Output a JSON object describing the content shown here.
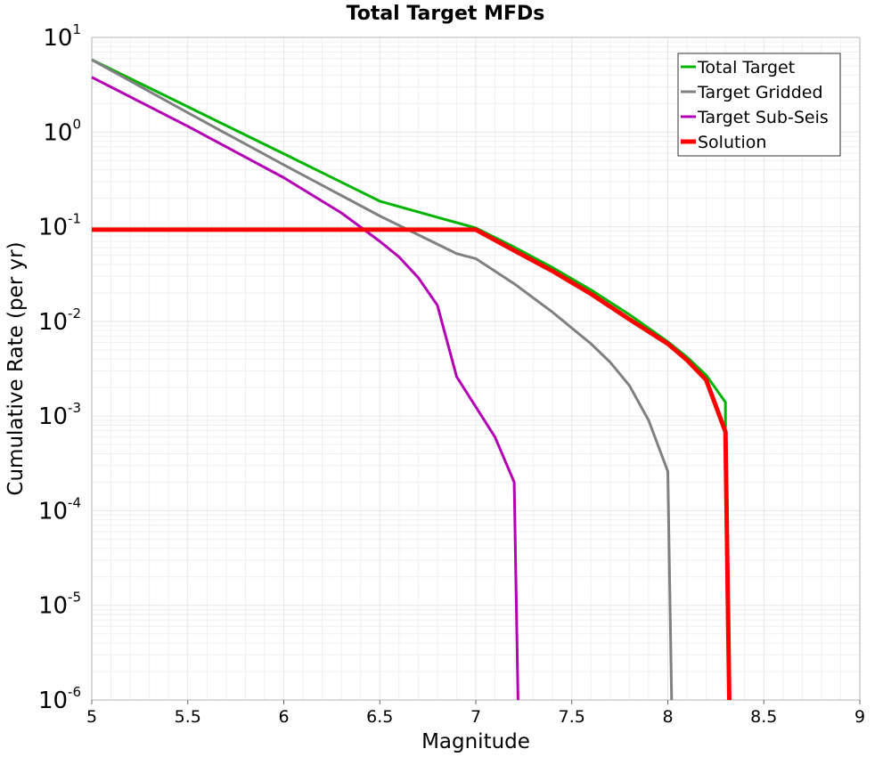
{
  "chart_data": {
    "type": "line",
    "title": "Total Target MFDs",
    "xlabel": "Magnitude",
    "ylabel": "Cumulative Rate (per yr)",
    "xlim": [
      5,
      9
    ],
    "ylim": [
      1e-06,
      10
    ],
    "yscale": "log",
    "grid": true,
    "legend_position": "top-right",
    "x_ticks": [
      "5",
      "5.5",
      "6",
      "6.5",
      "7",
      "7.5",
      "8",
      "8.5",
      "9"
    ],
    "y_ticks": [
      {
        "base": "10",
        "exp": "1"
      },
      {
        "base": "10",
        "exp": "0"
      },
      {
        "base": "10",
        "exp": "-1"
      },
      {
        "base": "10",
        "exp": "-2"
      },
      {
        "base": "10",
        "exp": "-3"
      },
      {
        "base": "10",
        "exp": "-4"
      },
      {
        "base": "10",
        "exp": "-5"
      },
      {
        "base": "10",
        "exp": "-6"
      }
    ],
    "series": [
      {
        "name": "Total Target",
        "color": "#00b400",
        "x": [
          5,
          5.5,
          6,
          6.5,
          7,
          7.2,
          7.4,
          7.6,
          7.8,
          8.0,
          8.1,
          8.2,
          8.3,
          8.3
        ],
        "y": [
          5.8,
          1.85,
          0.59,
          0.186,
          0.097,
          0.061,
          0.037,
          0.0215,
          0.0118,
          0.0061,
          0.0042,
          0.0027,
          0.0014,
          0.00075
        ]
      },
      {
        "name": "Target Gridded",
        "color": "#808080",
        "x": [
          5,
          5.5,
          6,
          6.5,
          6.9,
          7.0,
          7.2,
          7.4,
          7.6,
          7.7,
          7.8,
          7.9,
          8.0,
          8.02
        ],
        "y": [
          5.8,
          1.6,
          0.45,
          0.13,
          0.052,
          0.046,
          0.025,
          0.0125,
          0.0058,
          0.0037,
          0.0021,
          0.0009,
          0.00026,
          1e-06
        ]
      },
      {
        "name": "Target Sub-Seis",
        "color": "#b400b4",
        "x": [
          5,
          5.5,
          6,
          6.3,
          6.5,
          6.6,
          6.7,
          6.8,
          6.9,
          7.1,
          7.2,
          7.22
        ],
        "y": [
          3.8,
          1.15,
          0.33,
          0.14,
          0.07,
          0.048,
          0.029,
          0.0148,
          0.0026,
          0.0006,
          0.0002,
          1e-06
        ]
      },
      {
        "name": "Solution",
        "color": "#ff0000",
        "x": [
          5,
          7.0,
          7.2,
          7.4,
          7.6,
          7.8,
          8.0,
          8.1,
          8.2,
          8.3,
          8.32
        ],
        "y": [
          0.093,
          0.093,
          0.056,
          0.034,
          0.0195,
          0.0105,
          0.0058,
          0.0039,
          0.0024,
          0.00068,
          1e-06
        ]
      }
    ]
  }
}
